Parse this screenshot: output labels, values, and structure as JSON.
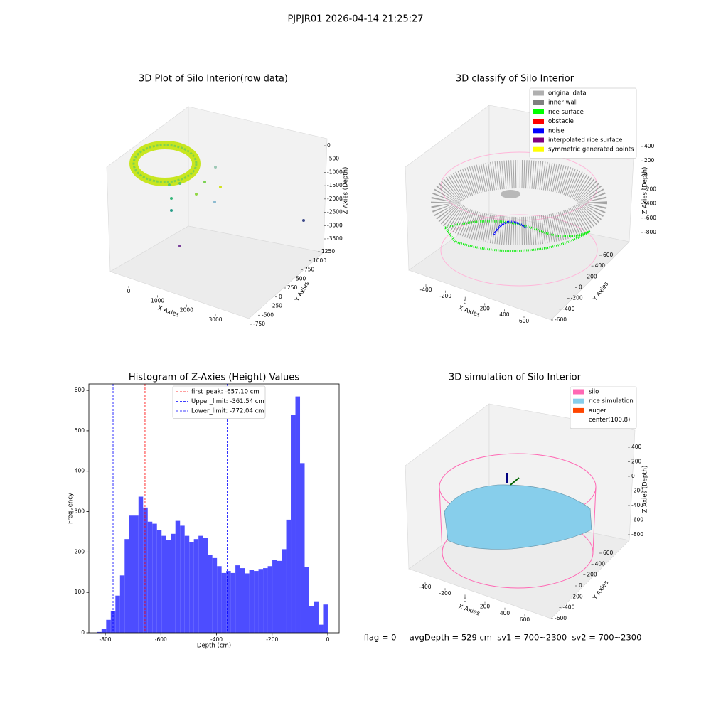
{
  "suptitle": "PJPJR01 2026-04-14 21:25:27",
  "footer": "flag = 0     avgDepth = 529 cm  sv1 = 700~2300  sv2 = 700~2300",
  "chart_data": [
    {
      "type": "scatter3d",
      "title": "3D Plot of Silo Interior(row data)",
      "xlabel": "X Axies",
      "ylabel": "Y Axies",
      "zlabel": "Z Axies (Depth)",
      "xticks": [
        0,
        1000,
        2000,
        3000
      ],
      "yticks": [
        -750,
        -500,
        -250,
        0,
        250,
        500,
        750,
        1000,
        1250
      ],
      "zticks": [
        0,
        -500,
        -1000,
        -1500,
        -2000,
        -2500,
        -3000,
        -3500
      ]
    },
    {
      "type": "scatter3d",
      "title": "3D classify of Silo Interior",
      "xlabel": "X Axies",
      "ylabel": "Y Axies",
      "zlabel": "Z Axies (Depth)",
      "xticks": [
        -400,
        -200,
        0,
        200,
        400,
        600
      ],
      "yticks": [
        -600,
        -400,
        -200,
        0,
        200,
        400,
        600
      ],
      "zticks": [
        400,
        200,
        0,
        -200,
        -400,
        -600,
        -800
      ],
      "series": [
        {
          "name": "original data",
          "color": "#b0b0b0"
        },
        {
          "name": "inner wall",
          "color": "#808080"
        },
        {
          "name": "rice surface",
          "color": "#00ff00"
        },
        {
          "name": "obstacle",
          "color": "#ff0000"
        },
        {
          "name": "noise",
          "color": "#0000ff"
        },
        {
          "name": "interpolated rice surface",
          "color": "#800080"
        },
        {
          "name": "symmetric generated points",
          "color": "#ffff00"
        }
      ]
    },
    {
      "type": "histogram",
      "title": "Histogram of Z-Axies (Height) Values",
      "xlabel": "Depth (cm)",
      "ylabel": "Frequency",
      "color": "#4d4dff",
      "bins": [
        -830,
        -813.4,
        -796.8,
        -780.2,
        -763.6,
        -747,
        -730.4,
        -713.8,
        -697.2,
        -680.6,
        -664,
        -647.4,
        -630.8,
        -614.2,
        -597.6,
        -581,
        -564.4,
        -547.8,
        -531.2,
        -514.6,
        -498,
        -481.4,
        -464.8,
        -448.2,
        -431.6,
        -415,
        -398.4,
        -381.8,
        -365.2,
        -348.6,
        -332,
        -315.4,
        -298.8,
        -282.2,
        -265.6,
        -249,
        -232.4,
        -215.8,
        -199.2,
        -182.6,
        -166,
        -149.4,
        -132.8,
        -116.2,
        -99.6,
        -83,
        -66.4,
        -49.8,
        -33.2,
        -16.6,
        0
      ],
      "values": [
        2,
        10,
        32,
        53,
        92,
        142,
        232,
        290,
        290,
        337,
        310,
        275,
        270,
        255,
        240,
        230,
        245,
        277,
        265,
        240,
        225,
        232,
        240,
        235,
        192,
        185,
        165,
        148,
        153,
        148,
        167,
        160,
        147,
        155,
        153,
        158,
        160,
        165,
        180,
        178,
        207,
        280,
        540,
        585,
        420,
        163,
        66,
        78,
        20,
        70
      ],
      "xlim": [
        -859,
        41
      ],
      "ylim": [
        0,
        616
      ],
      "xticks": [
        -800,
        -600,
        -400,
        -200,
        0
      ],
      "yticks": [
        0,
        100,
        200,
        300,
        400,
        500,
        600
      ],
      "legend": "upper center",
      "vlines": [
        {
          "name": "first_peak: -657.10 cm",
          "value": -657.1,
          "color": "#ff0000"
        },
        {
          "name": "Upper_limit: -361.54 cm",
          "value": -361.54,
          "color": "#0000ff"
        },
        {
          "name": "Lower_limit: -772.04 cm",
          "value": -772.04,
          "color": "#0000ff"
        }
      ]
    },
    {
      "type": "scatter3d",
      "title": "3D simulation of Silo Interior",
      "xlabel": "X Axies",
      "ylabel": "Y Axies",
      "zlabel": "Z Axies (Depth)",
      "xticks": [
        -400,
        -200,
        0,
        200,
        400,
        600
      ],
      "yticks": [
        -600,
        -400,
        -200,
        0,
        200,
        400,
        600
      ],
      "zticks": [
        400,
        200,
        0,
        -200,
        -400,
        -600,
        -800
      ],
      "series": [
        {
          "name": "silo",
          "color": "#ff69b4"
        },
        {
          "name": "rice simulation",
          "color": "#87ceeb"
        },
        {
          "name": "auger",
          "color": "#ff4500"
        },
        {
          "name": "center(100,8)",
          "color": "#ffffff"
        }
      ]
    }
  ]
}
